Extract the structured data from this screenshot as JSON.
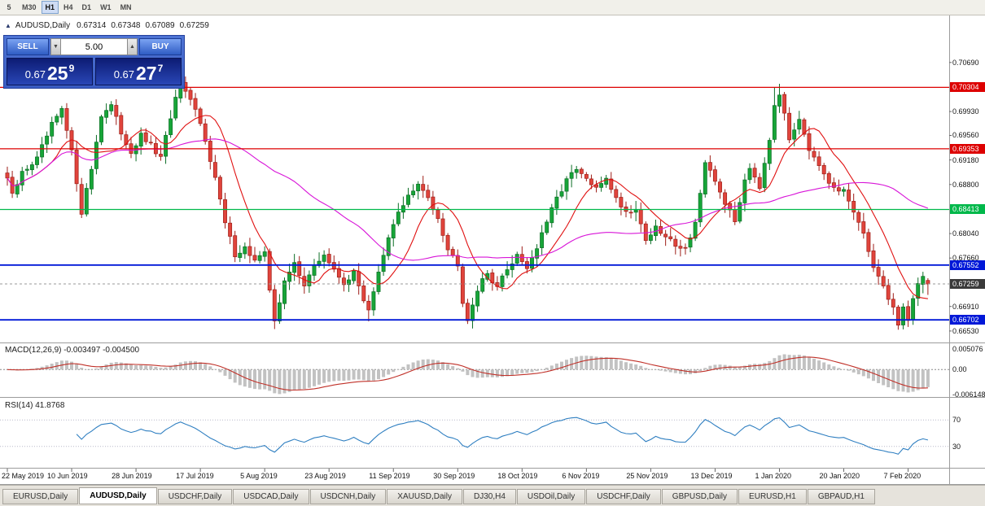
{
  "toolbar": {
    "timeframes": [
      {
        "label": "5",
        "active": false
      },
      {
        "label": "M30",
        "active": false
      },
      {
        "label": "H1",
        "active": true
      },
      {
        "label": "H4",
        "active": false
      },
      {
        "label": "D1",
        "active": false
      },
      {
        "label": "W1",
        "active": false
      },
      {
        "label": "MN",
        "active": false
      }
    ]
  },
  "chart": {
    "header": {
      "collapse_icon": "▲",
      "title": "AUDUSD,Daily",
      "open": "0.67314",
      "high": "0.67348",
      "low": "0.67089",
      "close": "0.67259"
    },
    "one_click": {
      "sell_label": "SELL",
      "buy_label": "BUY",
      "volume": "5.00",
      "spin_down_icon": "▼",
      "spin_up_icon": "▲",
      "sell_price": {
        "base": "0.67",
        "pips": "25",
        "point": "9"
      },
      "buy_price": {
        "base": "0.67",
        "pips": "27",
        "point": "7"
      }
    },
    "y_axis": {
      "plain_labels": [
        {
          "text": "0.70690",
          "price": 0.7069
        },
        {
          "text": "0.69930",
          "price": 0.6993
        },
        {
          "text": "0.69560",
          "price": 0.6956
        },
        {
          "text": "0.69180",
          "price": 0.6918
        },
        {
          "text": "0.68800",
          "price": 0.688
        },
        {
          "text": "0.68040",
          "price": 0.6804
        },
        {
          "text": "0.67660",
          "price": 0.6766
        },
        {
          "text": "0.66910",
          "price": 0.6691
        },
        {
          "text": "0.66530",
          "price": 0.6653
        }
      ],
      "line_labels": [
        {
          "text": "0.70304",
          "price": 0.70304,
          "color": "#dd0000"
        },
        {
          "text": "0.69353",
          "price": 0.69353,
          "color": "#dd0000"
        },
        {
          "text": "0.68413",
          "price": 0.68413,
          "color": "#00b84a"
        },
        {
          "text": "0.67552",
          "price": 0.67552,
          "color": "#0018d8"
        },
        {
          "text": "0.66702",
          "price": 0.66702,
          "color": "#0018d8"
        },
        {
          "text": "0.67259",
          "price": 0.67259,
          "color": "#3a3a3a"
        }
      ]
    },
    "x_axis_labels": [
      "22 May 2019",
      "10 Jun 2019",
      "28 Jun 2019",
      "17 Jul 2019",
      "5 Aug 2019",
      "23 Aug 2019",
      "11 Sep 2019",
      "30 Sep 2019",
      "18 Oct 2019",
      "6 Nov 2019",
      "25 Nov 2019",
      "13 Dec 2019",
      "1 Jan 2020",
      "20 Jan 2020",
      "7 Feb 2020"
    ]
  },
  "macd_panel": {
    "label": "MACD(12,26,9) -0.003497 -0.004500",
    "axis_labels": [
      "0.005076",
      "0.00",
      "-0.006148"
    ],
    "axis_values": [
      0.005076,
      0,
      -0.006148
    ]
  },
  "rsi_panel": {
    "label": "RSI(14) 41.8768",
    "levels": [
      70,
      30
    ]
  },
  "tabs": [
    {
      "label": "EURUSD,Daily",
      "active": false
    },
    {
      "label": "AUDUSD,Daily",
      "active": true
    },
    {
      "label": "USDCHF,Daily",
      "active": false
    },
    {
      "label": "USDCAD,Daily",
      "active": false
    },
    {
      "label": "USDCNH,Daily",
      "active": false
    },
    {
      "label": "XAUUSD,Daily",
      "active": false
    },
    {
      "label": "DJ30,H4",
      "active": false
    },
    {
      "label": "USDOil,Daily",
      "active": false
    },
    {
      "label": "USDCHF,Daily",
      "active": false
    },
    {
      "label": "GBPUSD,Daily",
      "active": false
    },
    {
      "label": "EURUSD,H1",
      "active": false
    },
    {
      "label": "GBPAUD,H1",
      "active": false
    }
  ],
  "chart_data": {
    "type": "candlestick",
    "symbol": "AUDUSD",
    "timeframe": "Daily",
    "bars": 187,
    "last_bar": {
      "open": 0.67314,
      "high": 0.67348,
      "low": 0.67089,
      "close": 0.67259
    },
    "price_range": {
      "top": 0.7133,
      "bottom": 0.6639
    },
    "close_waypoints": [
      [
        0,
        0.689
      ],
      [
        1,
        0.6862
      ],
      [
        3,
        0.6898
      ],
      [
        6,
        0.692
      ],
      [
        9,
        0.6972
      ],
      [
        11,
        0.6995
      ],
      [
        13,
        0.693
      ],
      [
        15,
        0.6838
      ],
      [
        17,
        0.6905
      ],
      [
        19,
        0.6988
      ],
      [
        21,
        0.7002
      ],
      [
        23,
        0.696
      ],
      [
        25,
        0.693
      ],
      [
        27,
        0.6955
      ],
      [
        29,
        0.694
      ],
      [
        31,
        0.692
      ],
      [
        33,
        0.6985
      ],
      [
        35,
        0.7038
      ],
      [
        36,
        0.702
      ],
      [
        38,
        0.6995
      ],
      [
        40,
        0.695
      ],
      [
        42,
        0.689
      ],
      [
        44,
        0.682
      ],
      [
        46,
        0.6772
      ],
      [
        48,
        0.6782
      ],
      [
        50,
        0.6762
      ],
      [
        52,
        0.6772
      ],
      [
        53,
        0.6718
      ],
      [
        54,
        0.6672
      ],
      [
        55,
        0.6698
      ],
      [
        56,
        0.6728
      ],
      [
        58,
        0.6758
      ],
      [
        60,
        0.6726
      ],
      [
        62,
        0.6752
      ],
      [
        64,
        0.6772
      ],
      [
        66,
        0.6746
      ],
      [
        68,
        0.6728
      ],
      [
        70,
        0.6742
      ],
      [
        72,
        0.6702
      ],
      [
        73,
        0.6688
      ],
      [
        75,
        0.6742
      ],
      [
        77,
        0.6795
      ],
      [
        79,
        0.6838
      ],
      [
        81,
        0.6862
      ],
      [
        83,
        0.6878
      ],
      [
        85,
        0.686
      ],
      [
        87,
        0.683
      ],
      [
        89,
        0.678
      ],
      [
        91,
        0.6758
      ],
      [
        92,
        0.67
      ],
      [
        93,
        0.6672
      ],
      [
        95,
        0.6718
      ],
      [
        97,
        0.6742
      ],
      [
        99,
        0.6722
      ],
      [
        101,
        0.6748
      ],
      [
        103,
        0.6772
      ],
      [
        105,
        0.6752
      ],
      [
        107,
        0.6782
      ],
      [
        109,
        0.6822
      ],
      [
        111,
        0.6858
      ],
      [
        113,
        0.6888
      ],
      [
        115,
        0.6902
      ],
      [
        117,
        0.6888
      ],
      [
        119,
        0.6872
      ],
      [
        121,
        0.6892
      ],
      [
        123,
        0.6858
      ],
      [
        125,
        0.6838
      ],
      [
        127,
        0.6842
      ],
      [
        129,
        0.6795
      ],
      [
        131,
        0.6812
      ],
      [
        133,
        0.6798
      ],
      [
        135,
        0.6788
      ],
      [
        137,
        0.678
      ],
      [
        139,
        0.6822
      ],
      [
        141,
        0.691
      ],
      [
        143,
        0.6885
      ],
      [
        145,
        0.6852
      ],
      [
        147,
        0.6822
      ],
      [
        149,
        0.6888
      ],
      [
        150,
        0.6908
      ],
      [
        152,
        0.6878
      ],
      [
        154,
        0.6952
      ],
      [
        155,
        0.7005
      ],
      [
        156,
        0.7022
      ],
      [
        158,
        0.695
      ],
      [
        160,
        0.6985
      ],
      [
        162,
        0.6935
      ],
      [
        164,
        0.6905
      ],
      [
        166,
        0.688
      ],
      [
        168,
        0.6868
      ],
      [
        169,
        0.6872
      ],
      [
        171,
        0.6838
      ],
      [
        173,
        0.68
      ],
      [
        175,
        0.6755
      ],
      [
        177,
        0.672
      ],
      [
        179,
        0.669
      ],
      [
        180,
        0.6662
      ],
      [
        181,
        0.669
      ],
      [
        182,
        0.6672
      ],
      [
        183,
        0.6705
      ],
      [
        184,
        0.6725
      ],
      [
        185,
        0.674
      ],
      [
        186,
        0.67259
      ]
    ],
    "wick_lows": {
      "54": 0.6656,
      "73": 0.6668,
      "93": 0.6664,
      "180": 0.6655
    },
    "wick_highs": {
      "35": 0.7047,
      "155": 0.703,
      "156": 0.7036
    },
    "horizontal_lines": [
      {
        "price": 0.70304,
        "color": "#dd0000",
        "width": 1.3
      },
      {
        "price": 0.69353,
        "color": "#dd0000",
        "width": 1.3
      },
      {
        "price": 0.68413,
        "color": "#00b84a",
        "width": 1.3
      },
      {
        "price": 0.67552,
        "color": "#0018d8",
        "width": 1.8
      },
      {
        "price": 0.66702,
        "color": "#0018d8",
        "width": 1.8
      }
    ],
    "current_price": 0.67259,
    "moving_averages": [
      {
        "period": 10,
        "color": "#e01010"
      },
      {
        "period": 40,
        "color": "#d815d8"
      }
    ],
    "indicators": {
      "macd": {
        "fast": 12,
        "slow": 26,
        "signal": 9,
        "value": -0.003497,
        "signal_value": -0.0045,
        "range": [
          -0.006148,
          0.005076
        ]
      },
      "rsi": {
        "period": 14,
        "value": 41.8768,
        "levels": [
          70,
          30
        ],
        "range": [
          0,
          100
        ]
      }
    },
    "colors": {
      "up_body": "#17a538",
      "up_edge": "#0c6e26",
      "down_body": "#e0443c",
      "down_edge": "#9e1e18",
      "macd_hist": "#c2c2c2",
      "macd_signal": "#c03028",
      "rsi_line": "#2f7fc1"
    }
  }
}
